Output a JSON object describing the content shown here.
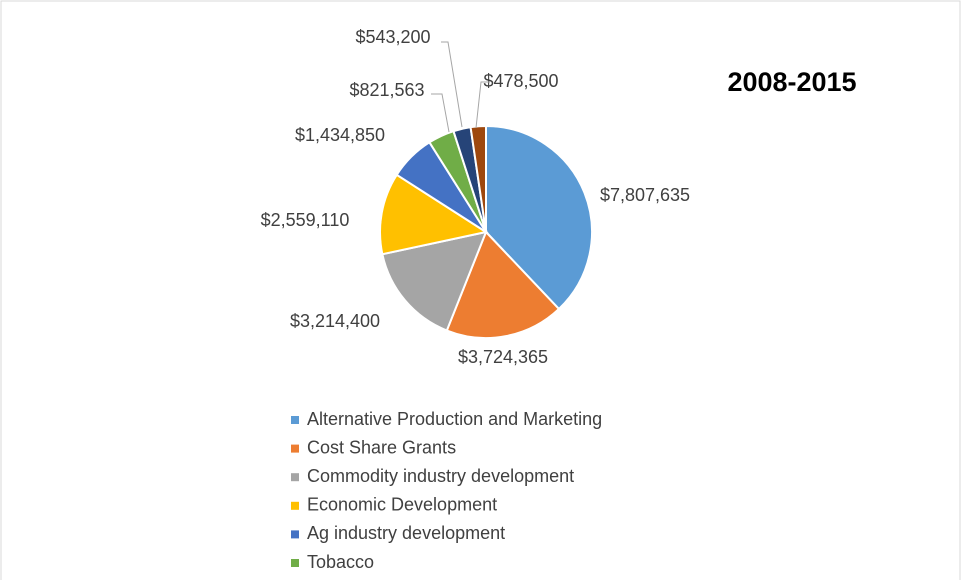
{
  "chart_data": {
    "type": "pie",
    "title": "2008-2015",
    "categories": [
      "Alternative Production and Marketing",
      "Cost Share Grants",
      "Commodity industry development",
      "Economic Development",
      "Ag industry development",
      "Tobacco",
      null,
      null
    ],
    "values": [
      7807635,
      3724365,
      3214400,
      2559110,
      1434850,
      821563,
      543200,
      478500
    ],
    "value_labels": [
      "$7,807,635",
      "$3,724,365",
      "$3,214,400",
      "$2,559,110",
      "$1,434,850",
      "$821,563",
      "$543,200",
      "$478,500"
    ],
    "colors": [
      "#5b9bd5",
      "#ed7d31",
      "#a5a5a5",
      "#ffc000",
      "#4472c4",
      "#70ad47",
      "#264478",
      "#9e480e"
    ]
  }
}
